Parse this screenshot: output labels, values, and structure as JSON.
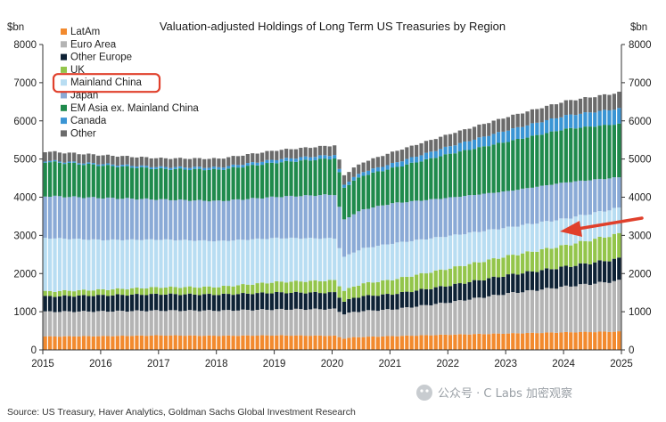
{
  "chart_data": {
    "type": "bar",
    "stacked": true,
    "title": "Valuation-adjusted Holdings of Long Term US Treasuries by Region",
    "ylabel_left": "$bn",
    "ylabel_right": "$bn",
    "ylim": [
      0,
      8000
    ],
    "yticks": [
      0,
      1000,
      2000,
      3000,
      4000,
      5000,
      6000,
      7000,
      8000
    ],
    "ytick_labels": [
      "0",
      "1000",
      "2000",
      "3000",
      "4000",
      "5000",
      "6000",
      "7000",
      "8000"
    ],
    "xlim": [
      2015,
      2025
    ],
    "xticks": [
      2015,
      2016,
      2017,
      2018,
      2019,
      2020,
      2021,
      2022,
      2023,
      2024,
      2025
    ],
    "xtick_labels": [
      "2015",
      "2016",
      "2017",
      "2018",
      "2019",
      "2020",
      "2021",
      "2022",
      "2023",
      "2024",
      "2025"
    ],
    "frequency": "monthly",
    "start": "2015-01",
    "end": "2024-12",
    "anchor_months": [
      0,
      12,
      24,
      36,
      48,
      60,
      62,
      64,
      66,
      72,
      84,
      96,
      108,
      119
    ],
    "series": [
      {
        "name": "LatAm",
        "color": "#f28a2e",
        "anchor_values": [
          350,
          360,
          380,
          370,
          380,
          370,
          300,
          330,
          340,
          360,
          400,
          430,
          460,
          480
        ]
      },
      {
        "name": "Euro Area",
        "color": "#b4b4b4",
        "anchor_values": [
          650,
          650,
          650,
          660,
          680,
          700,
          640,
          660,
          680,
          700,
          850,
          1050,
          1200,
          1330
        ]
      },
      {
        "name": "Other Europe",
        "color": "#0e2235",
        "anchor_values": [
          400,
          420,
          430,
          420,
          440,
          430,
          330,
          370,
          390,
          400,
          440,
          480,
          520,
          580
        ]
      },
      {
        "name": "UK",
        "color": "#93c54b",
        "anchor_values": [
          130,
          150,
          180,
          200,
          280,
          320,
          280,
          300,
          330,
          380,
          450,
          500,
          560,
          650
        ]
      },
      {
        "name": "Mainland China",
        "color": "#b8ddf2",
        "anchor_values": [
          1400,
          1300,
          1250,
          1200,
          1150,
          1100,
          880,
          900,
          920,
          950,
          850,
          750,
          700,
          680
        ]
      },
      {
        "name": "Japan",
        "color": "#8aaad6",
        "anchor_values": [
          1100,
          1100,
          1050,
          1050,
          1080,
          1150,
          980,
          1000,
          1020,
          1050,
          1000,
          950,
          950,
          800
        ]
      },
      {
        "name": "EM Asia ex. Mainland China",
        "color": "#1f8a4c",
        "anchor_values": [
          900,
          850,
          800,
          820,
          900,
          950,
          840,
          870,
          890,
          920,
          1150,
          1300,
          1400,
          1400
        ]
      },
      {
        "name": "Canada",
        "color": "#3a95d4",
        "anchor_values": [
          30,
          40,
          50,
          60,
          80,
          90,
          80,
          90,
          100,
          120,
          200,
          300,
          350,
          400
        ]
      },
      {
        "name": "Other",
        "color": "#6b6b6b",
        "anchor_values": [
          240,
          230,
          230,
          230,
          240,
          250,
          250,
          250,
          250,
          300,
          320,
          350,
          380,
          420
        ]
      }
    ],
    "highlighted_series": "Mainland China",
    "annotation": "red arrow pointing at Mainland China band",
    "legend_position": "top-left"
  },
  "footer": {
    "source": "Source: US Treasury, Haver Analytics, Goldman Sachs Global Investment Research"
  },
  "watermark": {
    "text": "公众号 · C Labs 加密观察"
  },
  "colors": {
    "highlight": "#e0402c",
    "axis": "#333333",
    "tick_text": "#222222"
  }
}
